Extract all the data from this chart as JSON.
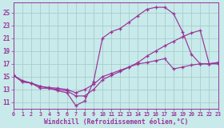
{
  "background_color": "#c8eaea",
  "grid_color": "#a8cccc",
  "line_color": "#993399",
  "xlabel": "Windchill (Refroidissement éolien,°C)",
  "xlim": [
    0,
    23
  ],
  "ylim": [
    10.0,
    26.5
  ],
  "yticks": [
    11,
    13,
    15,
    17,
    19,
    21,
    23,
    25
  ],
  "xticks": [
    0,
    1,
    2,
    3,
    4,
    5,
    6,
    7,
    8,
    9,
    10,
    11,
    12,
    13,
    14,
    15,
    16,
    17,
    18,
    19,
    20,
    21,
    22,
    23
  ],
  "curve1_x": [
    0,
    1,
    2,
    3,
    4,
    5,
    6,
    7,
    8,
    9,
    10,
    11,
    12,
    13,
    14,
    15,
    16,
    17,
    18,
    19,
    20,
    21,
    22,
    23
  ],
  "curve1_y": [
    15.2,
    14.2,
    14.0,
    13.2,
    13.2,
    12.8,
    12.5,
    10.5,
    11.2,
    14.2,
    21.0,
    22.0,
    22.5,
    23.5,
    24.5,
    25.5,
    25.8,
    25.8,
    24.8,
    22.0,
    18.5,
    17.0,
    17.0,
    17.2
  ],
  "curve2_x": [
    0,
    1,
    2,
    3,
    4,
    5,
    6,
    7,
    8,
    9,
    10,
    11,
    12,
    13,
    14,
    15,
    16,
    17,
    18,
    19,
    20,
    21,
    22,
    23
  ],
  "curve2_y": [
    15.2,
    14.4,
    14.0,
    13.5,
    13.2,
    13.0,
    12.8,
    12.0,
    12.0,
    13.0,
    14.5,
    15.2,
    15.8,
    16.5,
    17.2,
    18.2,
    19.0,
    19.8,
    20.5,
    21.2,
    21.8,
    22.2,
    17.0,
    17.2
  ],
  "curve3_x": [
    0,
    1,
    2,
    3,
    4,
    5,
    6,
    7,
    8,
    9,
    10,
    11,
    12,
    13,
    14,
    15,
    16,
    17,
    18,
    19,
    20,
    21,
    22,
    23
  ],
  "curve3_y": [
    15.2,
    14.2,
    14.0,
    13.5,
    13.3,
    13.2,
    13.0,
    12.5,
    13.0,
    13.8,
    15.0,
    15.5,
    16.0,
    16.5,
    17.0,
    17.2,
    17.5,
    17.8,
    16.2,
    16.5,
    16.8,
    17.0,
    17.0,
    17.0
  ]
}
